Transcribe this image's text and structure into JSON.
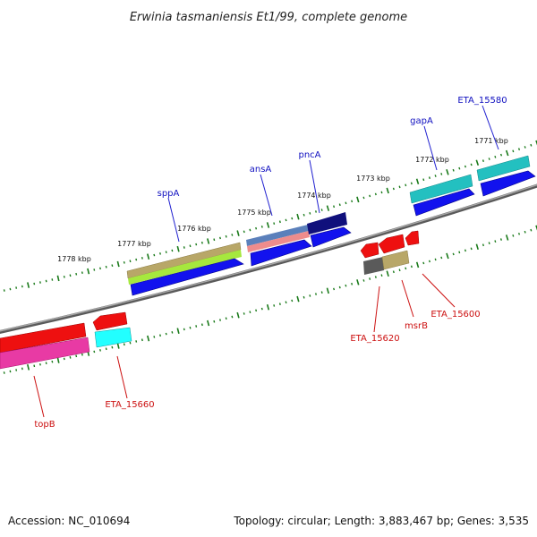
{
  "title": "Erwinia tasmaniensis Et1/99, complete genome",
  "footer": {
    "accession": "Accession: NC_010694",
    "summary": "Topology: circular; Length: 3,883,467 bp; Genes: 3,535"
  },
  "colors": {
    "backbone": "#7a7a7a",
    "tick": "#1a7a1a",
    "forward_label": "#1010c0",
    "reverse_label": "#cc1010"
  },
  "scale_labels": [
    "1771 kbp",
    "1772 kbp",
    "1773 kbp",
    "1774 kbp",
    "1775 kbp",
    "1776 kbp",
    "1777 kbp",
    "1778 kbp"
  ],
  "forward_labels": [
    "ETA_15580",
    "gapA",
    "pncA",
    "ansA",
    "sppA"
  ],
  "reverse_labels": [
    "ETA_15600",
    "msrB",
    "ETA_15620",
    "ETA_15660",
    "topB"
  ]
}
